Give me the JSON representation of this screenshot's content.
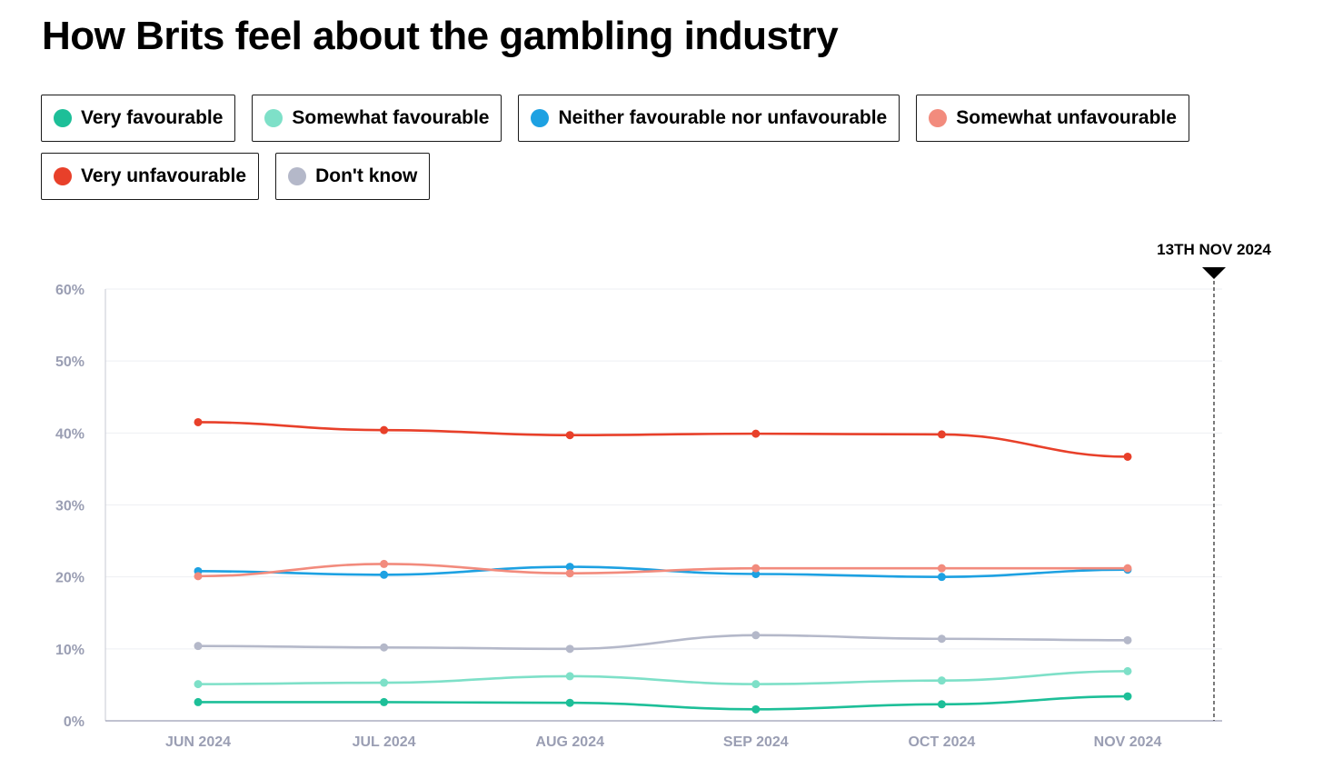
{
  "chart_data": {
    "type": "line",
    "title": "How Brits feel about the gambling industry",
    "xlabel": "",
    "ylabel": "",
    "categories": [
      "JUN 2024",
      "JUL 2024",
      "AUG 2024",
      "SEP 2024",
      "OCT 2024",
      "NOV 2024"
    ],
    "ylim": [
      0,
      60
    ],
    "yticks": [
      0,
      10,
      20,
      30,
      40,
      50,
      60
    ],
    "ytick_labels": [
      "0%",
      "10%",
      "20%",
      "30%",
      "40%",
      "50%",
      "60%"
    ],
    "grid": true,
    "legend_position": "top",
    "series": [
      {
        "name": "Very favourable",
        "color": "#1dbf98",
        "values": [
          2.6,
          2.6,
          2.5,
          1.6,
          2.3,
          3.4
        ]
      },
      {
        "name": "Somewhat favourable",
        "color": "#7ee0c8",
        "values": [
          5.1,
          5.3,
          6.2,
          5.1,
          5.6,
          6.9
        ]
      },
      {
        "name": "Neither favourable nor unfavourable",
        "color": "#1da1e2",
        "values": [
          20.8,
          20.3,
          21.4,
          20.4,
          20.0,
          21.0
        ]
      },
      {
        "name": "Somewhat unfavourable",
        "color": "#f28b7d",
        "values": [
          20.1,
          21.8,
          20.5,
          21.2,
          21.2,
          21.2
        ]
      },
      {
        "name": "Very unfavourable",
        "color": "#e8402a",
        "values": [
          41.5,
          40.4,
          39.7,
          39.9,
          39.8,
          36.7
        ]
      },
      {
        "name": "Don't know",
        "color": "#b4b8c9",
        "values": [
          10.4,
          10.2,
          10.0,
          11.9,
          11.4,
          11.2
        ]
      }
    ],
    "annotation": {
      "label": "13TH NOV 2024",
      "position_after": "NOV 2024"
    }
  }
}
